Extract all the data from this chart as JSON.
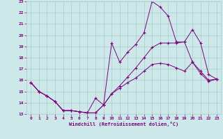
{
  "xlabel": "Windchill (Refroidissement éolien,°C)",
  "bg_color": "#cce8e8",
  "grid_color": "#aacccc",
  "line_color": "#800080",
  "xlim": [
    -0.5,
    23.5
  ],
  "ylim": [
    13,
    23
  ],
  "xticks": [
    0,
    1,
    2,
    3,
    4,
    5,
    6,
    7,
    8,
    9,
    10,
    11,
    12,
    13,
    14,
    15,
    16,
    17,
    18,
    19,
    20,
    21,
    22,
    23
  ],
  "yticks": [
    13,
    14,
    15,
    16,
    17,
    18,
    19,
    20,
    21,
    22,
    23
  ],
  "line1_x": [
    0,
    1,
    2,
    3,
    4,
    5,
    6,
    7,
    8,
    9,
    10,
    11,
    12,
    13,
    14,
    15,
    16,
    17,
    18,
    19,
    20,
    21,
    22,
    23
  ],
  "line1_y": [
    15.8,
    15.0,
    14.6,
    14.1,
    13.3,
    13.3,
    13.2,
    13.1,
    14.4,
    13.8,
    19.3,
    17.6,
    18.5,
    19.2,
    20.2,
    23.0,
    22.5,
    21.7,
    19.4,
    19.4,
    20.5,
    19.3,
    16.5,
    16.1
  ],
  "line2_x": [
    0,
    1,
    2,
    3,
    4,
    5,
    6,
    7,
    8,
    9,
    10,
    11,
    12,
    13,
    14,
    15,
    16,
    17,
    18,
    19,
    20,
    21,
    22,
    23
  ],
  "line2_y": [
    15.8,
    15.0,
    14.6,
    14.1,
    13.3,
    13.3,
    13.2,
    13.1,
    13.1,
    13.8,
    14.8,
    15.5,
    16.3,
    17.1,
    18.0,
    18.9,
    19.3,
    19.3,
    19.3,
    19.4,
    17.6,
    16.8,
    16.0,
    16.1
  ],
  "line3_x": [
    0,
    1,
    2,
    3,
    4,
    5,
    6,
    7,
    8,
    9,
    10,
    11,
    12,
    13,
    14,
    15,
    16,
    17,
    18,
    19,
    20,
    21,
    22,
    23
  ],
  "line3_y": [
    15.8,
    15.0,
    14.6,
    14.1,
    13.3,
    13.3,
    13.2,
    13.1,
    13.1,
    13.8,
    14.8,
    15.3,
    15.8,
    16.2,
    16.8,
    17.4,
    17.5,
    17.4,
    17.1,
    16.8,
    17.6,
    16.6,
    15.9,
    16.1
  ]
}
